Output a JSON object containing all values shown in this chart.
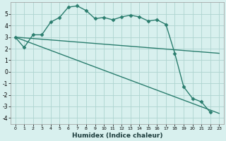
{
  "xlabel": "Humidex (Indice chaleur)",
  "bg_color": "#d8f0ee",
  "line_color": "#2a7d6e",
  "grid_color": "#aed4d0",
  "xlim": [
    -0.5,
    23.5
  ],
  "ylim": [
    -4.5,
    6.0
  ],
  "yticks": [
    -4,
    -3,
    -2,
    -1,
    0,
    1,
    2,
    3,
    4,
    5
  ],
  "xticks": [
    0,
    1,
    2,
    3,
    4,
    5,
    6,
    7,
    8,
    9,
    10,
    11,
    12,
    13,
    14,
    15,
    16,
    17,
    18,
    19,
    20,
    21,
    22,
    23
  ],
  "line1_x": [
    0,
    1,
    2,
    3,
    4,
    5,
    6,
    7,
    8,
    9,
    10,
    11,
    12,
    13,
    14,
    15,
    16,
    17,
    18,
    19,
    20,
    21,
    22
  ],
  "line1_y": [
    3.0,
    2.1,
    3.2,
    3.2,
    4.3,
    4.7,
    5.6,
    5.7,
    5.3,
    4.6,
    4.7,
    4.5,
    4.75,
    4.9,
    4.75,
    4.4,
    4.5,
    4.1,
    1.6,
    -1.3,
    -2.3,
    -2.6,
    -3.5
  ],
  "line2_x": [
    0,
    23
  ],
  "line2_y": [
    3.0,
    1.6
  ],
  "line3_x": [
    0,
    23
  ],
  "line3_y": [
    3.0,
    -3.6
  ],
  "marker": "D",
  "marker_size": 2.5,
  "linewidth": 1.0
}
